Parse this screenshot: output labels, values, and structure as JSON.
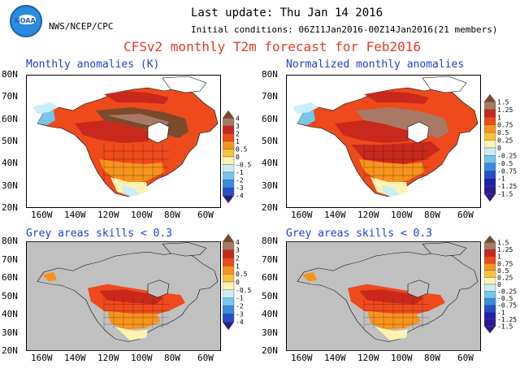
{
  "header": {
    "logo_text": "NOAA",
    "org": "NWS/NCEP/CPC",
    "last_update": "Last update: Thu Jan 14 2016",
    "initial_conditions": "Initial conditions: 06Z11Jan2016-00Z14Jan2016(21 members)",
    "title": "CFSv2 monthly T2m forecast for Feb2016"
  },
  "panels": [
    {
      "title": "Monthly anomalies (K)",
      "masked": false,
      "colorbar": "abs"
    },
    {
      "title": "Normalized monthly anomalies",
      "masked": false,
      "colorbar": "norm"
    },
    {
      "title": "Grey areas skills < 0.3",
      "masked": true,
      "colorbar": "abs"
    },
    {
      "title": "Grey areas skills < 0.3",
      "masked": true,
      "colorbar": "norm"
    }
  ],
  "axes": {
    "lat_labels": [
      "80N",
      "70N",
      "60N",
      "50N",
      "40N",
      "30N",
      "20N"
    ],
    "lon_labels": [
      "160W",
      "140W",
      "120W",
      "100W",
      "80W",
      "60W"
    ]
  },
  "colorbars": {
    "abs": [
      "4",
      "3",
      "2",
      "1",
      "0.5",
      "0",
      "-0.5",
      "-1",
      "-2",
      "-3",
      "-4"
    ],
    "norm": [
      "1.5",
      "1.25",
      "1",
      "0.75",
      "0.5",
      "0.25",
      "0",
      "-0.25",
      "-0.5",
      "-0.75",
      "-1",
      "-1.25",
      "-1.5"
    ]
  },
  "colors": {
    "ocean": "#ffffff",
    "grey_mask": "#c0c0c0",
    "title_red": "#e23a2a",
    "panel_title_blue": "#1b3fd6",
    "scale": [
      "#7a4a2a",
      "#a87a66",
      "#c9281c",
      "#ee4a1c",
      "#f7941d",
      "#fbc23a",
      "#fff3b0",
      "#ffffff",
      "#c8eef8",
      "#76c6ee",
      "#3a8ce0",
      "#2450c8",
      "#1e1eb0",
      "#2a1a90"
    ]
  }
}
